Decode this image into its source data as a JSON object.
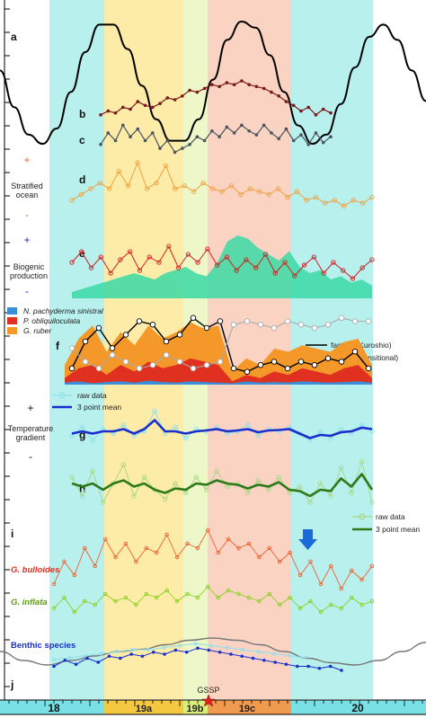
{
  "chart_data": {
    "type": "line",
    "x_axis": {
      "tick_labels": [
        "18",
        "19a",
        "19b",
        "19c",
        "20"
      ],
      "marker_label": "GSSP"
    },
    "stage_bands": [
      {
        "label": "18",
        "color": "#b8f0ee",
        "bar_color": "#79e0e6"
      },
      {
        "label": "19a",
        "color": "#fdeca8",
        "bar_color": "#f5c842"
      },
      {
        "label": "19b",
        "color": "#eef7c8",
        "bar_color": "#d9ef7a"
      },
      {
        "label": "19c",
        "color": "#fbd3c2",
        "bar_color": "#f09a50"
      },
      {
        "label": "20",
        "color": "#b8f0ee",
        "bar_color": "#79e0e6"
      }
    ],
    "panels": {
      "a": {
        "label": "a",
        "series": [
          {
            "color": "#000000",
            "values": [
              0.2,
              -0.4,
              -0.85,
              -1,
              -0.75,
              -0.15,
              0.5,
              0.95,
              0.95,
              0.55,
              -0.05,
              -0.6,
              -0.95,
              -0.95,
              -0.6,
              0.05,
              0.7,
              1,
              0.9,
              0.45,
              -0.15,
              -0.7,
              -1,
              -0.85,
              -0.35,
              0.25,
              0.75,
              0.95,
              0.7,
              0.2,
              -0.3
            ]
          }
        ]
      },
      "b": {
        "label": "b",
        "series": [
          {
            "color": "#7a1a1a",
            "values": [
              0.1,
              0.2,
              0.15,
              0.3,
              0.25,
              0.45,
              0.35,
              0.3,
              0.4,
              0.55,
              0.5,
              0.6,
              0.75,
              0.7,
              0.8,
              0.9,
              0.85,
              0.95,
              0.9,
              1.0,
              0.9,
              0.85,
              0.8,
              0.7,
              0.6,
              0.45,
              0.35,
              0.2,
              0.3,
              0.1,
              0.25,
              0.15
            ]
          }
        ]
      },
      "c": {
        "label": "c",
        "series": [
          {
            "color": "#4a5560",
            "values": [
              0.4,
              0.7,
              0.5,
              0.9,
              0.6,
              0.8,
              0.5,
              0.7,
              0.3,
              0.5,
              0.2,
              0.3,
              0.4,
              0.6,
              0.5,
              0.75,
              0.6,
              0.85,
              0.7,
              0.9,
              0.75,
              0.65,
              0.9,
              0.7,
              0.55,
              0.8,
              0.5,
              0.65,
              0.4,
              0.7,
              0.45,
              0.6
            ]
          }
        ]
      },
      "d": {
        "label": "d",
        "series": [
          {
            "color": "#f0a040",
            "values": [
              0.3,
              0.4,
              0.5,
              0.6,
              0.5,
              0.8,
              0.55,
              0.95,
              0.5,
              0.6,
              0.9,
              0.5,
              0.55,
              0.45,
              0.6,
              0.5,
              0.45,
              0.55,
              0.4,
              0.5,
              0.45,
              0.4,
              0.5,
              0.35,
              0.45,
              0.3,
              0.35,
              0.25,
              0.3,
              0.2,
              0.3,
              0.25,
              0.35
            ]
          }
        ]
      },
      "e": {
        "label": "e",
        "fill_color": "#3ad9a4",
        "series": [
          {
            "color": "#d02020",
            "values": [
              0.5,
              0.7,
              0.4,
              0.6,
              0.3,
              0.55,
              0.7,
              0.35,
              0.6,
              0.5,
              0.8,
              0.4,
              0.65,
              0.5,
              0.75,
              0.45,
              0.6,
              0.35,
              0.55,
              0.4,
              0.65,
              0.3,
              0.5,
              0.25,
              0.45,
              0.6,
              0.3,
              0.5,
              0.35,
              0.2,
              0.4,
              0.55
            ]
          }
        ],
        "fill_values": [
          0.1,
          0.15,
          0.2,
          0.25,
          0.3,
          0.35,
          0.4,
          0.35,
          0.3,
          0.4,
          0.45,
          0.5,
          0.4,
          0.35,
          0.55,
          0.9,
          1.0,
          0.95,
          0.8,
          0.7,
          0.6,
          0.75,
          0.5,
          0.4,
          0.45,
          0.3,
          0.35,
          0.25,
          0.3,
          0.2
        ]
      },
      "f": {
        "label": "f",
        "legend": [
          {
            "label": "N. pachyderma sinistral",
            "color": "#3a8fd8"
          },
          {
            "label": "P. obliquiloculata",
            "color": "#e03020"
          },
          {
            "label": "G. ruber",
            "color": "#f5982a"
          }
        ],
        "line_legend": [
          {
            "label": "factor1 (Kuroshio)",
            "color": "#000000"
          },
          {
            "label": "factor2 (transitional)",
            "color": "#aaaaaa"
          }
        ],
        "series": [
          {
            "name": "factor1 (Kuroshio)",
            "color": "#000000",
            "values": [
              0.2,
              0.6,
              0.8,
              0.5,
              0.7,
              0.9,
              0.85,
              0.6,
              0.7,
              0.95,
              0.8,
              0.9,
              0.2,
              0.15,
              0.25,
              0.3,
              0.2,
              0.3,
              0.25,
              0.35,
              0.3,
              0.45,
              0.2
            ]
          },
          {
            "name": "factor2 (transitional)",
            "color": "#aaaaaa",
            "values": [
              0.5,
              0.3,
              0.2,
              0.4,
              0.3,
              0.2,
              0.25,
              0.4,
              0.3,
              0.2,
              0.25,
              0.3,
              0.85,
              0.9,
              0.85,
              0.8,
              0.9,
              0.85,
              0.8,
              0.85,
              0.95,
              0.9,
              0.9
            ]
          }
        ]
      },
      "g": {
        "label": "g",
        "legend": [
          {
            "label": "raw data",
            "color": "#8de0ec"
          },
          {
            "label": "3 point mean",
            "color": "#1a2fcc"
          }
        ],
        "series": [
          {
            "name": "raw data",
            "color": "#8de0ec",
            "values": [
              0.4,
              0.6,
              0.3,
              0.55,
              0.45,
              0.65,
              0.4,
              0.5,
              0.95,
              0.45,
              0.6,
              0.35,
              0.55,
              0.5,
              0.6,
              0.45,
              0.5,
              0.65,
              0.4,
              0.55,
              0.5,
              0.6,
              0.45,
              0.3,
              0.5,
              0.35,
              0.55,
              0.45,
              0.65,
              0.5
            ]
          },
          {
            "name": "3 point mean",
            "color": "#1a2fcc",
            "values": [
              0.45,
              0.5,
              0.45,
              0.5,
              0.5,
              0.55,
              0.45,
              0.55,
              0.75,
              0.5,
              0.5,
              0.45,
              0.5,
              0.52,
              0.55,
              0.5,
              0.52,
              0.55,
              0.48,
              0.52,
              0.53,
              0.55,
              0.45,
              0.35,
              0.42,
              0.4,
              0.48,
              0.5,
              0.58,
              0.55
            ]
          }
        ]
      },
      "h": {
        "label": "h",
        "legend": [
          {
            "label": "raw data",
            "color": "#a8d888"
          },
          {
            "label": "3 point mean",
            "color": "#2e7a1a"
          }
        ],
        "series": [
          {
            "name": "raw data",
            "color": "#a8d888",
            "values": [
              0.7,
              0.4,
              0.8,
              0.3,
              0.6,
              0.9,
              0.4,
              0.7,
              0.5,
              0.35,
              0.6,
              0.45,
              0.7,
              0.5,
              0.8,
              0.55,
              0.6,
              0.45,
              0.65,
              0.5,
              0.7,
              0.45,
              0.55,
              0.3,
              0.6,
              0.4,
              0.85,
              0.45,
              0.95,
              0.3
            ]
          },
          {
            "name": "3 point mean",
            "color": "#2e7a1a",
            "values": [
              0.6,
              0.55,
              0.6,
              0.5,
              0.6,
              0.65,
              0.55,
              0.6,
              0.5,
              0.45,
              0.52,
              0.5,
              0.6,
              0.58,
              0.65,
              0.6,
              0.58,
              0.52,
              0.58,
              0.55,
              0.62,
              0.5,
              0.48,
              0.4,
              0.5,
              0.48,
              0.68,
              0.55,
              0.75,
              0.5
            ]
          }
        ]
      },
      "i": {
        "label": "i",
        "series": [
          {
            "name": "G. bulloides",
            "color": "#f06030",
            "values": [
              0.3,
              0.55,
              0.4,
              0.7,
              0.5,
              0.8,
              0.6,
              0.75,
              0.55,
              0.7,
              0.65,
              0.85,
              0.6,
              0.75,
              0.7,
              0.9,
              0.65,
              0.8,
              0.7,
              0.75,
              0.6,
              0.7,
              0.55,
              0.65,
              0.4,
              0.55,
              0.3,
              0.5,
              0.25,
              0.45,
              0.35,
              0.5
            ]
          },
          {
            "name": "G. inflata",
            "color": "#8ad020",
            "values": [
              0.35,
              0.5,
              0.3,
              0.45,
              0.4,
              0.55,
              0.45,
              0.5,
              0.4,
              0.55,
              0.5,
              0.6,
              0.45,
              0.55,
              0.5,
              0.65,
              0.5,
              0.6,
              0.55,
              0.5,
              0.45,
              0.55,
              0.4,
              0.5,
              0.35,
              0.45,
              0.3,
              0.4,
              0.35,
              0.5,
              0.4,
              0.45
            ]
          }
        ],
        "arrow_color": "#1a6ad8"
      },
      "j": {
        "label": "j",
        "series": [
          {
            "name": "Benthic species",
            "color": "#1a2fcc",
            "values": [
              0.3,
              0.45,
              0.35,
              0.5,
              0.4,
              0.55,
              0.5,
              0.6,
              0.55,
              0.65,
              0.6,
              0.7,
              0.65,
              0.75,
              0.7,
              0.65,
              0.6,
              0.55,
              0.5,
              0.45,
              0.4,
              0.35,
              0.3,
              0.3,
              0.25,
              0.3,
              0.2
            ]
          },
          {
            "name": "",
            "color": "#8de0ec",
            "values": [
              0.35,
              0.4,
              0.45,
              0.5,
              0.55,
              0.6,
              0.6,
              0.65,
              0.7,
              0.75,
              0.7,
              0.65,
              0.6,
              0.55,
              0.5,
              0.45,
              0.4
            ]
          },
          {
            "name": "",
            "color": "#777777",
            "values": [
              0.6,
              0.4,
              0.3,
              0.4,
              0.5,
              0.6,
              0.65,
              0.75,
              0.85,
              0.9,
              0.85,
              0.75,
              0.6,
              0.45,
              0.35,
              0.3,
              0.4,
              0.6,
              0.8
            ]
          }
        ]
      }
    },
    "side_labels": {
      "stratified": {
        "text": "Stratified ocean",
        "plus": "+",
        "minus": "-",
        "color": "#f06030"
      },
      "biogenic": {
        "text": "Biogenic production",
        "plus": "+",
        "minus": "-",
        "color": "#1a2fcc"
      },
      "temperature": {
        "text": "Temperature gradient",
        "plus": "+",
        "minus": "-",
        "color": "#4cc8d8"
      }
    },
    "species_labels": {
      "g_bulloides": {
        "text": "G. bulloides",
        "color": "#e03020"
      },
      "g_inflata": {
        "text": "G. inflata",
        "color": "#5aa010"
      },
      "benthic": {
        "text": "Benthic species",
        "color": "#1a2fcc"
      }
    },
    "gssp_color": "#e02020"
  }
}
